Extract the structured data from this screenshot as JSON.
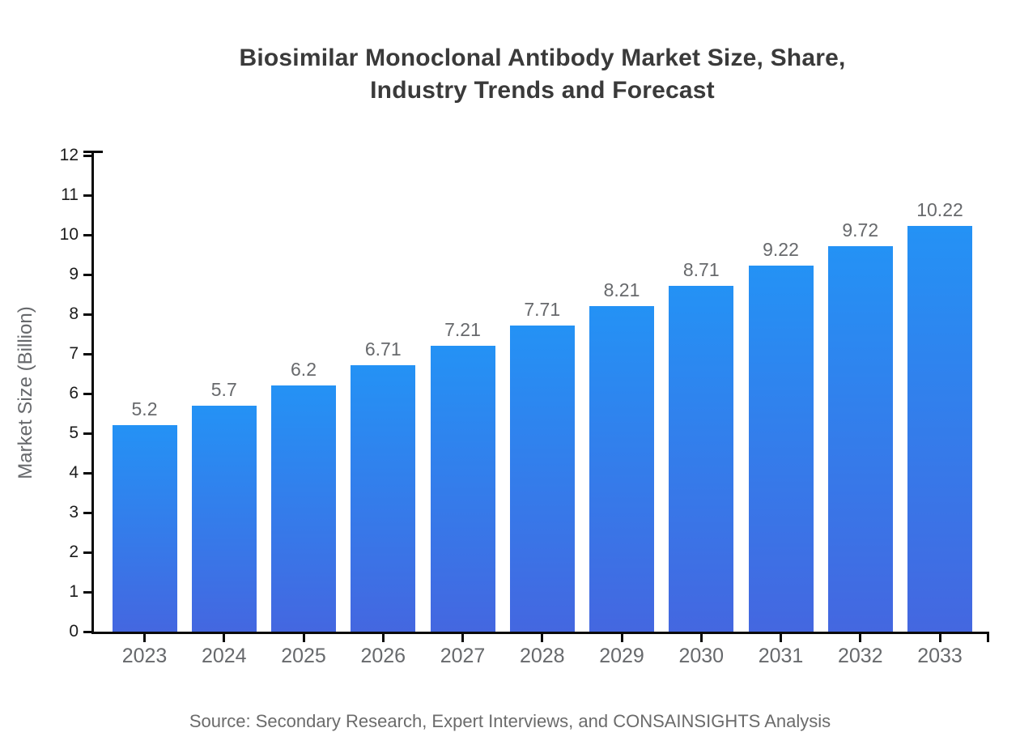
{
  "title": {
    "line1": "Biosimilar Monoclonal Antibody Market Size, Share,",
    "line2": "Industry Trends and Forecast"
  },
  "source_note": "Source: Secondary Research, Expert Interviews, and CONSAINSIGHTS Analysis",
  "colors": {
    "title_text": "#3a3a3a",
    "axis_line": "#0a0a0a",
    "y_tick_label": "#1c1c1c",
    "muted_label": "#67696c",
    "bar_gradient_top": "#2492f5",
    "bar_gradient_bottom": "#4467e0",
    "background": "#ffffff"
  },
  "chart_data": {
    "type": "bar",
    "title": "Biosimilar Monoclonal Antibody Market Size, Share, Industry Trends and Forecast",
    "categories": [
      "2023",
      "2024",
      "2025",
      "2026",
      "2027",
      "2028",
      "2029",
      "2030",
      "2031",
      "2032",
      "2033"
    ],
    "values": [
      5.2,
      5.7,
      6.2,
      6.71,
      7.21,
      7.71,
      8.21,
      8.71,
      9.22,
      9.72,
      10.22
    ],
    "value_labels": [
      "5.2",
      "5.7",
      "6.2",
      "6.71",
      "7.21",
      "7.71",
      "8.21",
      "8.71",
      "9.22",
      "9.72",
      "10.22"
    ],
    "xlabel": "",
    "ylabel": "Market Size (Billion)",
    "ylim": [
      0,
      12
    ],
    "ytick_step": 1,
    "yticks": [
      0,
      1,
      2,
      3,
      4,
      5,
      6,
      7,
      8,
      9,
      10,
      11,
      12
    ],
    "grid": false,
    "legend_position": "none",
    "bar_color_top": "#2492f5",
    "bar_color_bottom": "#4467e0",
    "annotation": "value labels shown above each bar"
  }
}
